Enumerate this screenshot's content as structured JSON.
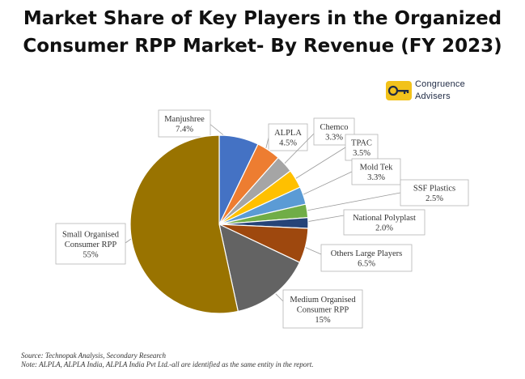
{
  "title_line1": "Market Share of Key Players in the Organized",
  "title_line2": "Consumer RPP Market- By Revenue (FY 2023)",
  "logo": {
    "line1": "Congruence",
    "line2": "Advisers",
    "icon": "key-icon",
    "accent": "#f2c21b"
  },
  "source_note": "Source: Technopak Analysis, Secondary Research",
  "footnote": "Note: ALPLA, ALPLA India, ALPLA India Pvt Ltd.-all are identified as the same entity in the report.",
  "chart_data": {
    "type": "pie",
    "start_angle_deg": 0,
    "direction": "clockwise",
    "slices": [
      {
        "label": "Manjushree",
        "value": 7.4,
        "display": "7.4%",
        "color": "#4472c4"
      },
      {
        "label": "ALPLA",
        "value": 4.5,
        "display": "4.5%",
        "color": "#ed7d31"
      },
      {
        "label": "Chemco",
        "value": 3.3,
        "display": "3.3%",
        "color": "#a5a5a5"
      },
      {
        "label": "TPAC",
        "value": 3.5,
        "display": "3.5%",
        "color": "#ffc000"
      },
      {
        "label": "Mold Tek",
        "value": 3.3,
        "display": "3.3%",
        "color": "#5b9bd5"
      },
      {
        "label": "SSF Plastics",
        "value": 2.5,
        "display": "2.5%",
        "color": "#70ad47"
      },
      {
        "label": "National Polyplast",
        "value": 2.0,
        "display": "2.0%",
        "color": "#264478"
      },
      {
        "label": "Others Large Players",
        "value": 6.5,
        "display": "6.5%",
        "color": "#9e480e"
      },
      {
        "label": "Medium Organised Consumer RPP",
        "value": 15,
        "display": "15%",
        "color": "#636363"
      },
      {
        "label": "Small Organised Consumer RPP",
        "value": 55,
        "display": "55%",
        "color": "#997300"
      }
    ]
  }
}
